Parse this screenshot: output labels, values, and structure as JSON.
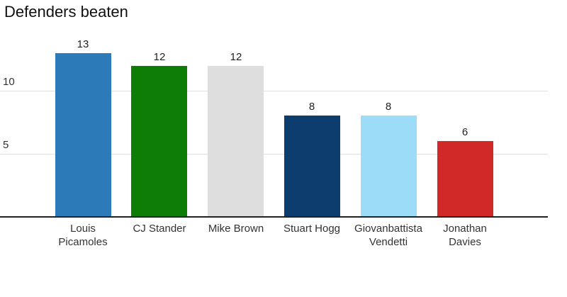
{
  "chart_data": {
    "type": "bar",
    "title": "Defenders beaten",
    "categories": [
      "Louis Picamoles",
      "CJ Stander",
      "Mike Brown",
      "Stuart Hogg",
      "Giovanbattista Vendetti",
      "Jonathan Davies"
    ],
    "values": [
      13,
      12,
      12,
      8,
      8,
      6
    ],
    "value_labels": [
      "13",
      "12",
      "12",
      "8",
      "8",
      "6"
    ],
    "bar_colors": [
      "#2d7ab8",
      "#0e7d06",
      "#dedede",
      "#0c3d6e",
      "#9cdcf9",
      "#d02927"
    ],
    "yticks": [
      5,
      10
    ],
    "ytick_labels": [
      "5",
      "10"
    ],
    "ylim": [
      0,
      14
    ],
    "xlabel": "",
    "ylabel": "",
    "grid": true,
    "legend": false,
    "colors": {
      "axis_line": "#222222",
      "grid_line": "#e0e0e0",
      "text": "#333333",
      "background": "#ffffff"
    }
  }
}
